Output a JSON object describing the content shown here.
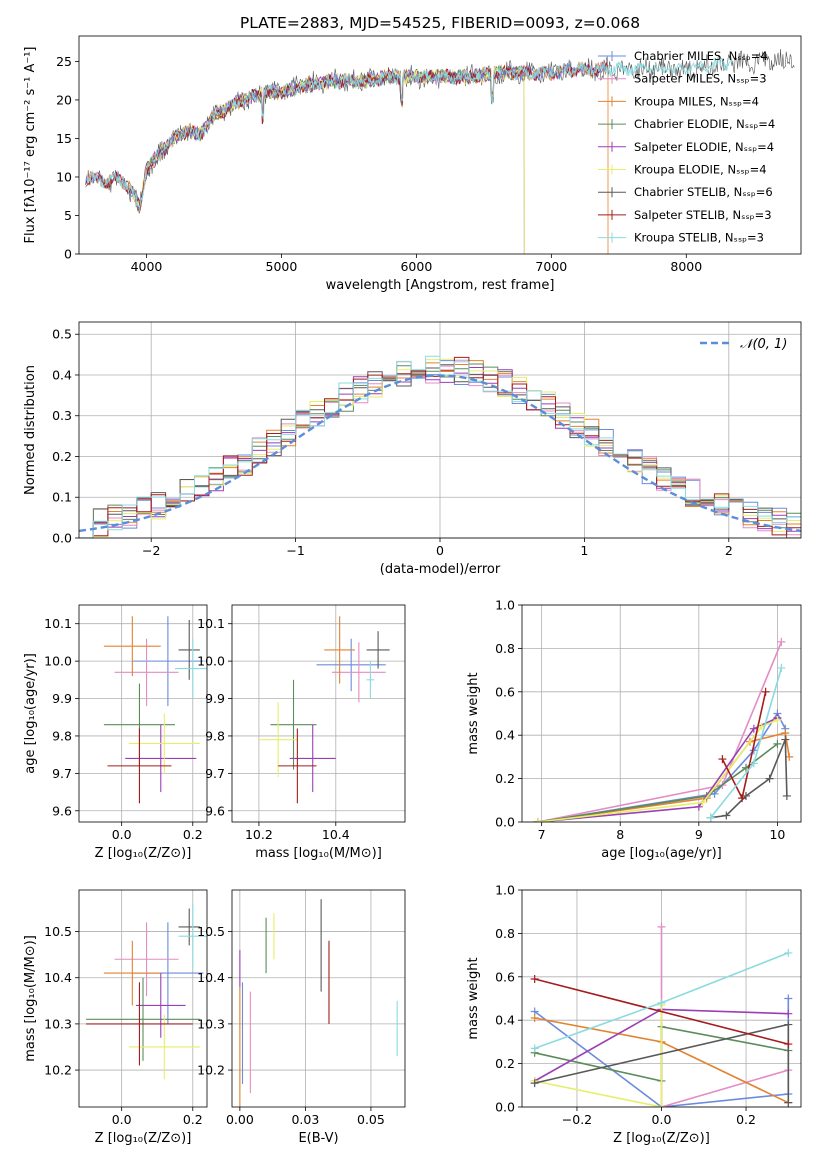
{
  "colors": [
    "#6b8cdc",
    "#e48cc4",
    "#e3822f",
    "#5b8b5b",
    "#9b3fb5",
    "#e6ee6a",
    "#595959",
    "#a51d1d",
    "#8adbe0"
  ],
  "chart_data": [
    {
      "id": "spectrum",
      "type": "line",
      "title": "PLATE=2883, MJD=54525, FIBERID=0093, z=0.068",
      "xlabel": "wavelength [Angstrom, rest frame]",
      "ylabel": "Flux [fλ10⁻¹⁷ erg cm⁻² s⁻¹ A⁻¹]",
      "xlim": [
        3500,
        8850
      ],
      "ylim": [
        0,
        28.3
      ],
      "xticks": [
        4000,
        5000,
        6000,
        7000,
        8000
      ],
      "yticks": [
        0,
        5,
        10,
        15,
        20,
        25
      ],
      "legend_position": "top-right",
      "series": [
        {
          "name": "Chabrier MILES, Nₛₛₚ=4"
        },
        {
          "name": "Salpeter MILES, Nₛₛₚ=3"
        },
        {
          "name": "Kroupa MILES, Nₛₛₚ=4"
        },
        {
          "name": "Chabrier ELODIE, Nₛₛₚ=4"
        },
        {
          "name": "Salpeter ELODIE, Nₛₛₚ=4"
        },
        {
          "name": "Kroupa ELODIE, Nₛₛₚ=4"
        },
        {
          "name": "Chabrier STELIB, Nₛₛₚ=6"
        },
        {
          "name": "Salpeter STELIB, Nₛₛₚ=3"
        },
        {
          "name": "Kroupa STELIB, Nₛₛₚ=3"
        }
      ],
      "continuum": {
        "x": [
          3550,
          3700,
          3800,
          3900,
          3950,
          4000,
          4100,
          4200,
          4300,
          4400,
          4500,
          4600,
          4700,
          4800,
          4900,
          5000,
          5200,
          5400,
          5600,
          5800,
          6000,
          6200,
          6400,
          6600,
          6800,
          7000,
          7200,
          7400,
          7600,
          7800,
          8000,
          8200,
          8400
        ],
        "y": [
          10,
          9.5,
          9.8,
          8,
          6,
          11,
          13,
          15,
          16,
          15.5,
          18,
          19,
          20,
          20.5,
          21,
          21,
          22,
          22.5,
          22.5,
          23,
          23,
          23,
          23,
          23.5,
          23.5,
          23.5,
          24,
          24,
          24,
          24,
          24,
          24.5,
          25
        ]
      }
    },
    {
      "id": "residuals",
      "type": "histogram",
      "xlabel": "(data-model)/error",
      "ylabel": "Normed distribution",
      "xlim": [
        -2.5,
        2.5
      ],
      "ylim": [
        0,
        0.53
      ],
      "xticks": [
        -2,
        -1,
        0,
        1,
        2
      ],
      "yticks": [
        0,
        0.1,
        0.2,
        0.3,
        0.4,
        0.5
      ],
      "legend_position": "top-right",
      "reference_curve": {
        "name": "𝒩(0, 1)",
        "mean": 0,
        "sigma": 1
      },
      "bin_width": 0.1
    },
    {
      "id": "age-vs-Z",
      "type": "errorbar",
      "xlabel": "Z [log₁₀(Z/Z⊙)]",
      "ylabel": "age  [log₁₀(age/yr)]",
      "xlim": [
        -0.12,
        0.24
      ],
      "ylim": [
        9.57,
        10.15
      ],
      "xticks": [
        0.0,
        0.2
      ],
      "yticks": [
        9.6,
        9.7,
        9.8,
        9.9,
        10.0,
        10.1
      ],
      "points": [
        {
          "x": 0.13,
          "y": 10.0,
          "xerr": 0.1,
          "yerr": 0.12
        },
        {
          "x": 0.07,
          "y": 9.97,
          "xerr": 0.09,
          "yerr": 0.09
        },
        {
          "x": 0.03,
          "y": 10.04,
          "xerr": 0.08,
          "yerr": 0.08
        },
        {
          "x": 0.05,
          "y": 9.83,
          "xerr": 0.1,
          "yerr": 0.11
        },
        {
          "x": 0.11,
          "y": 9.74,
          "xerr": 0.1,
          "yerr": 0.09
        },
        {
          "x": 0.12,
          "y": 9.78,
          "xerr": 0.1,
          "yerr": 0.08
        },
        {
          "x": 0.19,
          "y": 10.03,
          "xerr": 0.03,
          "yerr": 0.08
        },
        {
          "x": 0.05,
          "y": 9.72,
          "xerr": 0.09,
          "yerr": 0.1
        },
        {
          "x": 0.2,
          "y": 9.98,
          "xerr": 0.05,
          "yerr": 0.08
        }
      ]
    },
    {
      "id": "age-vs-mass",
      "type": "errorbar",
      "xlabel": "mass [log₁₀(M/M⊙)]",
      "ylabel": "",
      "xlim": [
        10.13,
        10.58
      ],
      "ylim": [
        9.57,
        10.15
      ],
      "xticks": [
        10.2,
        10.4
      ],
      "yticks": [
        9.6,
        9.7,
        9.8,
        9.9,
        10.0,
        10.1
      ],
      "points": [
        {
          "x": 10.44,
          "y": 9.99,
          "xerr": 0.09,
          "yerr": 0.07
        },
        {
          "x": 10.46,
          "y": 9.97,
          "xerr": 0.07,
          "yerr": 0.08
        },
        {
          "x": 10.41,
          "y": 10.03,
          "xerr": 0.04,
          "yerr": 0.09
        },
        {
          "x": 10.29,
          "y": 9.83,
          "xerr": 0.06,
          "yerr": 0.12
        },
        {
          "x": 10.34,
          "y": 9.74,
          "xerr": 0.06,
          "yerr": 0.09
        },
        {
          "x": 10.25,
          "y": 9.79,
          "xerr": 0.05,
          "yerr": 0.1
        },
        {
          "x": 10.51,
          "y": 10.03,
          "xerr": 0.03,
          "yerr": 0.05
        },
        {
          "x": 10.3,
          "y": 9.72,
          "xerr": 0.05,
          "yerr": 0.1
        },
        {
          "x": 10.49,
          "y": 9.95,
          "xerr": 0.01,
          "yerr": 0.05
        }
      ]
    },
    {
      "id": "weight-vs-age",
      "type": "line",
      "xlabel": "age  [log₁₀(age/yr)]",
      "ylabel": "mass weight",
      "xlim": [
        6.75,
        10.3
      ],
      "ylim": [
        0,
        1.0
      ],
      "xticks": [
        7,
        8,
        9,
        10
      ],
      "yticks": [
        0.0,
        0.2,
        0.4,
        0.6,
        0.8,
        1.0
      ],
      "series": [
        {
          "x": [
            6.95,
            9.2,
            9.7,
            10.0,
            10.1
          ],
          "y": [
            0.0,
            0.13,
            0.33,
            0.5,
            0.43
          ]
        },
        {
          "x": [
            6.95,
            9.3,
            10.05
          ],
          "y": [
            0.0,
            0.17,
            0.83
          ]
        },
        {
          "x": [
            6.95,
            9.1,
            9.65,
            10.1,
            10.15
          ],
          "y": [
            0.0,
            0.11,
            0.37,
            0.41,
            0.3
          ]
        },
        {
          "x": [
            6.95,
            9.1,
            9.6,
            10.0
          ],
          "y": [
            0.0,
            0.12,
            0.25,
            0.36
          ]
        },
        {
          "x": [
            6.95,
            9.0,
            9.7,
            10.0
          ],
          "y": [
            0.0,
            0.07,
            0.43,
            0.48
          ]
        },
        {
          "x": [
            6.95,
            9.05,
            9.8,
            10.0
          ],
          "y": [
            0.0,
            0.09,
            0.44,
            0.47
          ]
        },
        {
          "x": [
            9.15,
            9.35,
            9.6,
            9.9,
            10.1,
            10.12
          ],
          "y": [
            0.02,
            0.03,
            0.12,
            0.2,
            0.38,
            0.12
          ]
        },
        {
          "x": [
            9.3,
            9.55,
            9.85
          ],
          "y": [
            0.29,
            0.11,
            0.6
          ]
        },
        {
          "x": [
            9.15,
            9.7,
            10.05
          ],
          "y": [
            0.02,
            0.27,
            0.71
          ]
        }
      ]
    },
    {
      "id": "mass-vs-Z",
      "type": "errorbar",
      "xlabel": "Z [log₁₀(Z/Z⊙)]",
      "ylabel": "mass [log₁₀(M/M⊙)]",
      "xlim": [
        -0.12,
        0.24
      ],
      "ylim": [
        10.12,
        10.59
      ],
      "xticks": [
        0.0,
        0.2
      ],
      "yticks": [
        10.2,
        10.3,
        10.4,
        10.5
      ],
      "points": [
        {
          "x": 0.13,
          "y": 10.41,
          "xerr": 0.1,
          "yerr": 0.11
        },
        {
          "x": 0.07,
          "y": 10.44,
          "xerr": 0.09,
          "yerr": 0.08
        },
        {
          "x": 0.03,
          "y": 10.41,
          "xerr": 0.08,
          "yerr": 0.07
        },
        {
          "x": 0.06,
          "y": 10.31,
          "xerr": 0.16,
          "yerr": 0.09
        },
        {
          "x": 0.11,
          "y": 10.34,
          "xerr": 0.07,
          "yerr": 0.07
        },
        {
          "x": 0.12,
          "y": 10.25,
          "xerr": 0.1,
          "yerr": 0.07
        },
        {
          "x": 0.19,
          "y": 10.51,
          "xerr": 0.03,
          "yerr": 0.04
        },
        {
          "x": 0.05,
          "y": 10.3,
          "xerr": 0.15,
          "yerr": 0.09
        },
        {
          "x": 0.2,
          "y": 10.49,
          "xerr": 0.04,
          "yerr": 0.07
        }
      ]
    },
    {
      "id": "mass-vs-ebv",
      "type": "errorbar",
      "xlabel": "E(B-V)",
      "ylabel": "",
      "xlim": [
        -0.003,
        0.063
      ],
      "ylim": [
        10.12,
        10.59
      ],
      "xticks": [
        0.0,
        0.025,
        0.05
      ],
      "yticks": [
        10.2,
        10.3,
        10.4,
        10.5
      ],
      "points": [
        {
          "x": 0.001,
          "y": 10.28,
          "yerr": 0.11
        },
        {
          "x": 0.004,
          "y": 10.26,
          "yerr": 0.11
        },
        {
          "x": 0.0,
          "y": 10.24,
          "yerr": 0.14
        },
        {
          "x": 0.01,
          "y": 10.47,
          "yerr": 0.06
        },
        {
          "x": 0.0,
          "y": 10.42,
          "yerr": 0.04
        },
        {
          "x": 0.013,
          "y": 10.49,
          "yerr": 0.05
        },
        {
          "x": 0.031,
          "y": 10.47,
          "yerr": 0.1
        },
        {
          "x": 0.034,
          "y": 10.39,
          "yerr": 0.09
        },
        {
          "x": 0.06,
          "y": 10.29,
          "yerr": 0.06
        }
      ]
    },
    {
      "id": "weight-vs-Z",
      "type": "line",
      "xlabel": "Z [log₁₀(Z/Z⊙)]",
      "ylabel": "mass weight",
      "xlim": [
        -0.33,
        0.33
      ],
      "ylim": [
        0,
        1.0
      ],
      "xticks": [
        -0.2,
        0.0,
        0.2
      ],
      "yticks": [
        0.0,
        0.2,
        0.4,
        0.6,
        0.8,
        1.0
      ],
      "series": [
        {
          "x": [
            -0.3,
            0.0,
            0.3,
            0.3
          ],
          "y": [
            0.44,
            0.0,
            0.06,
            0.5
          ]
        },
        {
          "x": [
            0.0,
            0.0,
            0.3
          ],
          "y": [
            0.83,
            0.0,
            0.17
          ]
        },
        {
          "x": [
            -0.3,
            0.0,
            0.3
          ],
          "y": [
            0.41,
            0.3,
            0.02
          ]
        },
        {
          "x": [
            -0.3,
            0.0,
            0.0,
            0.3
          ],
          "y": [
            0.25,
            0.12,
            0.37,
            0.26
          ]
        },
        {
          "x": [
            -0.3,
            0.0,
            0.3
          ],
          "y": [
            0.12,
            0.45,
            0.43
          ]
        },
        {
          "x": [
            -0.3,
            0.0,
            0.0
          ],
          "y": [
            0.12,
            0.0,
            0.47
          ]
        },
        {
          "x": [
            -0.3,
            0.3,
            0.3
          ],
          "y": [
            0.11,
            0.38,
            0.02
          ]
        },
        {
          "x": [
            -0.3,
            0.3
          ],
          "y": [
            0.59,
            0.29
          ]
        },
        {
          "x": [
            -0.3,
            0.0,
            0.3
          ],
          "y": [
            0.27,
            0.48,
            0.71
          ]
        }
      ]
    }
  ]
}
